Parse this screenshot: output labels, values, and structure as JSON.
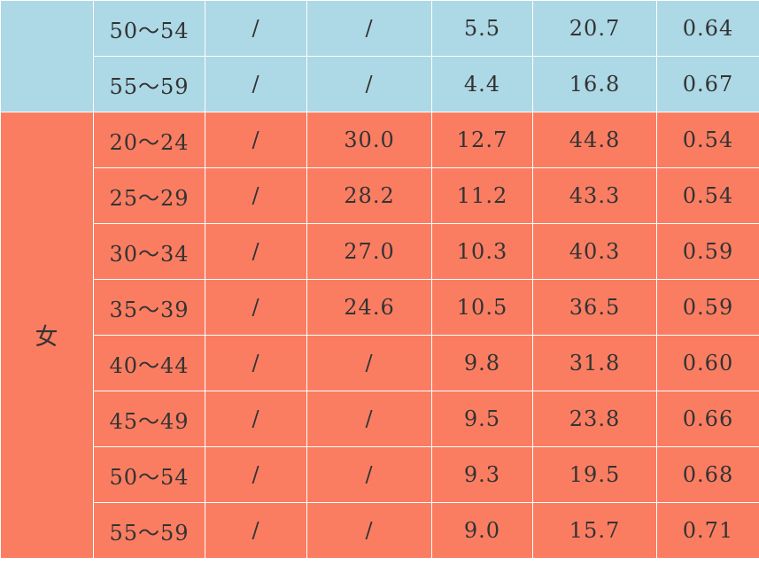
{
  "colors": {
    "blue_band": "#add8e6",
    "red_band": "#fa7d62",
    "text": "#333333"
  },
  "table": {
    "blue_rows": [
      {
        "age": "50～54",
        "c1": "/",
        "c2": "/",
        "c3": "5.5",
        "c4": "20.7",
        "c5": "0.64"
      },
      {
        "age": "55～59",
        "c1": "/",
        "c2": "/",
        "c3": "4.4",
        "c4": "16.8",
        "c5": "0.67"
      }
    ],
    "female_group_label": "女",
    "female_rows": [
      {
        "age": "20～24",
        "c1": "/",
        "c2": "30.0",
        "c3": "12.7",
        "c4": "44.8",
        "c5": "0.54"
      },
      {
        "age": "25～29",
        "c1": "/",
        "c2": "28.2",
        "c3": "11.2",
        "c4": "43.3",
        "c5": "0.54"
      },
      {
        "age": "30～34",
        "c1": "/",
        "c2": "27.0",
        "c3": "10.3",
        "c4": "40.3",
        "c5": "0.59"
      },
      {
        "age": "35～39",
        "c1": "/",
        "c2": "24.6",
        "c3": "10.5",
        "c4": "36.5",
        "c5": "0.59"
      },
      {
        "age": "40～44",
        "c1": "/",
        "c2": "/",
        "c3": "9.8",
        "c4": "31.8",
        "c5": "0.60"
      },
      {
        "age": "45～49",
        "c1": "/",
        "c2": "/",
        "c3": "9.5",
        "c4": "23.8",
        "c5": "0.66"
      },
      {
        "age": "50～54",
        "c1": "/",
        "c2": "/",
        "c3": "9.3",
        "c4": "19.5",
        "c5": "0.68"
      },
      {
        "age": "55～59",
        "c1": "/",
        "c2": "/",
        "c3": "9.0",
        "c4": "15.7",
        "c5": "0.71"
      }
    ]
  }
}
